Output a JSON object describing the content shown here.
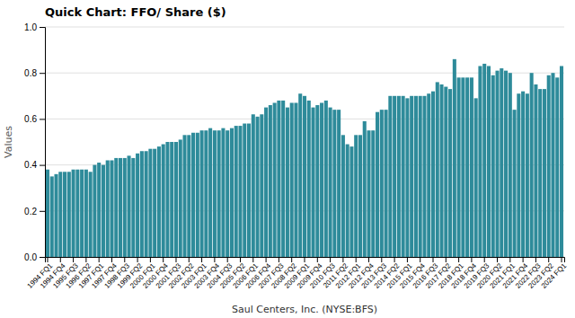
{
  "chart_data": {
    "type": "bar",
    "title": "Quick Chart: FFO/ Share ($)",
    "xlabel": "Saul Centers, Inc. (NYSE:BFS)",
    "ylabel": "Values",
    "color": "#2E8B9A",
    "grid": true,
    "ylim": [
      0,
      1
    ],
    "yticks": [
      {
        "value": 0,
        "label": "0.0"
      },
      0.2,
      0.4,
      0.6,
      0.8,
      {
        "value": 1,
        "label": "1.0"
      }
    ],
    "categories": [
      "1994 FQ1",
      null,
      null,
      "1994 FQ4",
      null,
      null,
      "1995 FQ3",
      null,
      null,
      "1996 FQ2",
      null,
      null,
      "1997 FQ1",
      null,
      null,
      "1997 FQ4",
      null,
      null,
      "1998 FQ3",
      null,
      null,
      "1999 FQ2",
      null,
      null,
      "2000 FQ1",
      null,
      null,
      "2000 FQ4",
      null,
      null,
      "2001 FQ3",
      null,
      null,
      "2002 FQ2",
      null,
      null,
      "2003 FQ1",
      null,
      null,
      "2003 FQ4",
      null,
      null,
      "2004 FQ3",
      null,
      null,
      "2005 FQ2",
      null,
      null,
      "2006 FQ1",
      null,
      null,
      "2006 FQ4",
      null,
      null,
      "2007 FQ3",
      null,
      null,
      "2008 FQ2",
      null,
      null,
      "2009 FQ1",
      null,
      null,
      "2009 FQ4",
      null,
      null,
      "2010 FQ3",
      null,
      null,
      "2011 FQ2",
      null,
      null,
      "2012 FQ1",
      null,
      null,
      "2012 FQ4",
      null,
      null,
      "2013 FQ3",
      null,
      null,
      "2014 FQ2",
      null,
      null,
      "2015 FQ1",
      null,
      null,
      "2015 FQ4",
      null,
      null,
      "2016 FQ3",
      null,
      null,
      "2017 FQ2",
      null,
      null,
      "2018 FQ1",
      null,
      null,
      "2018 FQ4",
      null,
      null,
      "2019 FQ3",
      null,
      null,
      "2020 FQ2",
      null,
      null,
      "2021 FQ1",
      null,
      null,
      "2021 FQ4",
      null,
      null,
      "2022 FQ3",
      null,
      null,
      "2023 FQ2",
      null,
      null,
      "2024 FQ1"
    ],
    "values": [
      0.38,
      0.35,
      0.36,
      0.37,
      0.37,
      0.37,
      0.38,
      0.38,
      0.38,
      0.38,
      0.37,
      0.4,
      0.41,
      0.4,
      0.42,
      0.42,
      0.43,
      0.43,
      0.43,
      0.44,
      0.43,
      0.45,
      0.46,
      0.46,
      0.47,
      0.47,
      0.48,
      0.49,
      0.5,
      0.5,
      0.5,
      0.51,
      0.53,
      0.53,
      0.54,
      0.54,
      0.55,
      0.55,
      0.56,
      0.55,
      0.55,
      0.56,
      0.55,
      0.56,
      0.57,
      0.57,
      0.58,
      0.58,
      0.62,
      0.61,
      0.62,
      0.65,
      0.66,
      0.67,
      0.68,
      0.68,
      0.65,
      0.67,
      0.67,
      0.71,
      0.7,
      0.68,
      0.65,
      0.66,
      0.67,
      0.68,
      0.65,
      0.64,
      0.64,
      0.53,
      0.49,
      0.48,
      0.53,
      0.53,
      0.59,
      0.55,
      0.55,
      0.63,
      0.64,
      0.64,
      0.7,
      0.7,
      0.7,
      0.7,
      0.69,
      0.7,
      0.7,
      0.7,
      0.7,
      0.71,
      0.72,
      0.76,
      0.75,
      0.74,
      0.73,
      0.86,
      0.78,
      0.78,
      0.78,
      0.78,
      0.69,
      0.83,
      0.84,
      0.83,
      0.79,
      0.81,
      0.82,
      0.81,
      0.8,
      0.64,
      0.71,
      0.72,
      0.71,
      0.8,
      0.75,
      0.73,
      0.73,
      0.79,
      0.8,
      0.78,
      0.83
    ]
  }
}
